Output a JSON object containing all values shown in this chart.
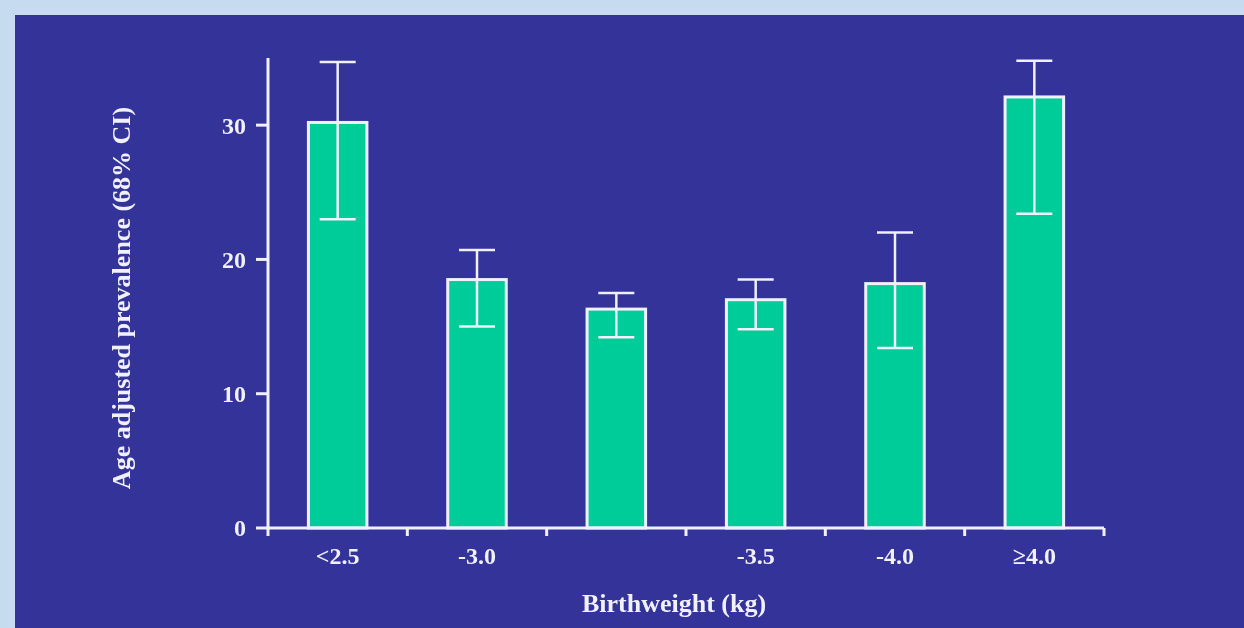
{
  "chart_data": {
    "type": "bar",
    "xlabel": "Birthweight (kg)",
    "ylabel": "Age adjusted prevalence (68% CI)",
    "categories": [
      "<2.5",
      "-3.0",
      null,
      "-3.5",
      "-4.0",
      "≥4.0"
    ],
    "values": [
      30.2,
      18.5,
      16.3,
      17.0,
      18.2,
      32.1
    ],
    "errors": [
      [
        23.0,
        34.7
      ],
      [
        15.0,
        20.7
      ],
      [
        14.2,
        17.5
      ],
      [
        14.8,
        18.5
      ],
      [
        13.4,
        22.0
      ],
      [
        23.4,
        34.8
      ]
    ],
    "color": "#00cc99",
    "ylim": [
      0,
      35
    ],
    "yticks": [
      0,
      10,
      20,
      30
    ],
    "grid": false
  }
}
